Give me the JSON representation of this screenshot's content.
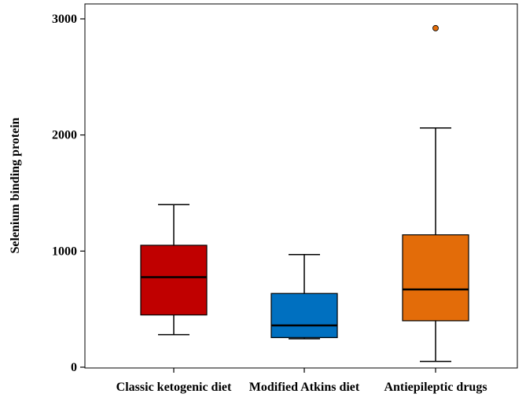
{
  "chart_data": {
    "type": "box",
    "title": "",
    "xlabel": "",
    "ylabel": "Selenium binding protein",
    "ylim": [
      0,
      3000
    ],
    "yticks": [
      0,
      1000,
      2000,
      3000
    ],
    "grid": false,
    "legend": "none",
    "categories": [
      "Classic ketogenic diet",
      "Modified Atkins diet",
      "Antiepileptic drugs"
    ],
    "boxes": [
      {
        "name": "Classic ketogenic diet",
        "whisker_low": 280,
        "q1": 450,
        "median": 775,
        "q3": 1050,
        "whisker_high": 1400,
        "outliers": [],
        "color": "#c00000"
      },
      {
        "name": "Modified Atkins diet",
        "whisker_low": 245,
        "q1": 255,
        "median": 360,
        "q3": 635,
        "whisker_high": 970,
        "outliers": [],
        "color": "#0070c0"
      },
      {
        "name": "Antiepileptic drugs",
        "whisker_low": 50,
        "q1": 400,
        "median": 670,
        "q3": 1140,
        "whisker_high": 2060,
        "outliers": [
          2920
        ],
        "color": "#e36c09"
      }
    ]
  }
}
